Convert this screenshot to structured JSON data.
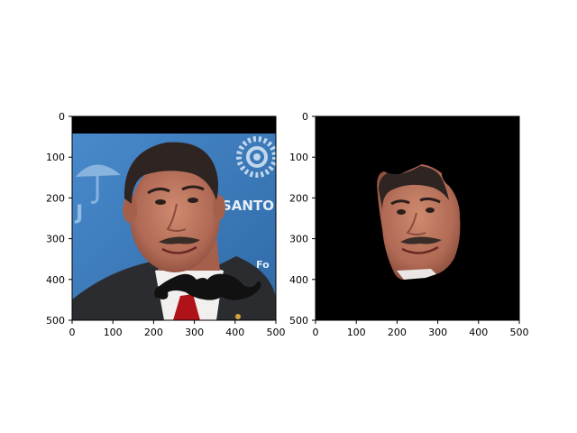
{
  "subplots": [
    {
      "id": "left",
      "image": "photo-with-mustache",
      "x_ticks": [
        "0",
        "100",
        "200",
        "300",
        "400",
        "500"
      ],
      "y_ticks": [
        "0",
        "100",
        "200",
        "300",
        "400",
        "500"
      ],
      "background_text": [
        "SANTO",
        "J",
        "Fo"
      ]
    },
    {
      "id": "right",
      "image": "masked-face-crop",
      "x_ticks": [
        "0",
        "100",
        "200",
        "300",
        "400",
        "500"
      ],
      "y_ticks": [
        "0",
        "100",
        "200",
        "300",
        "400",
        "500"
      ]
    }
  ],
  "colors": {
    "backdrop": "#3f7fc2",
    "mask": "#000000",
    "skin": "#b8715c",
    "suit": "#2b2c30",
    "tie": "#b0121a"
  }
}
